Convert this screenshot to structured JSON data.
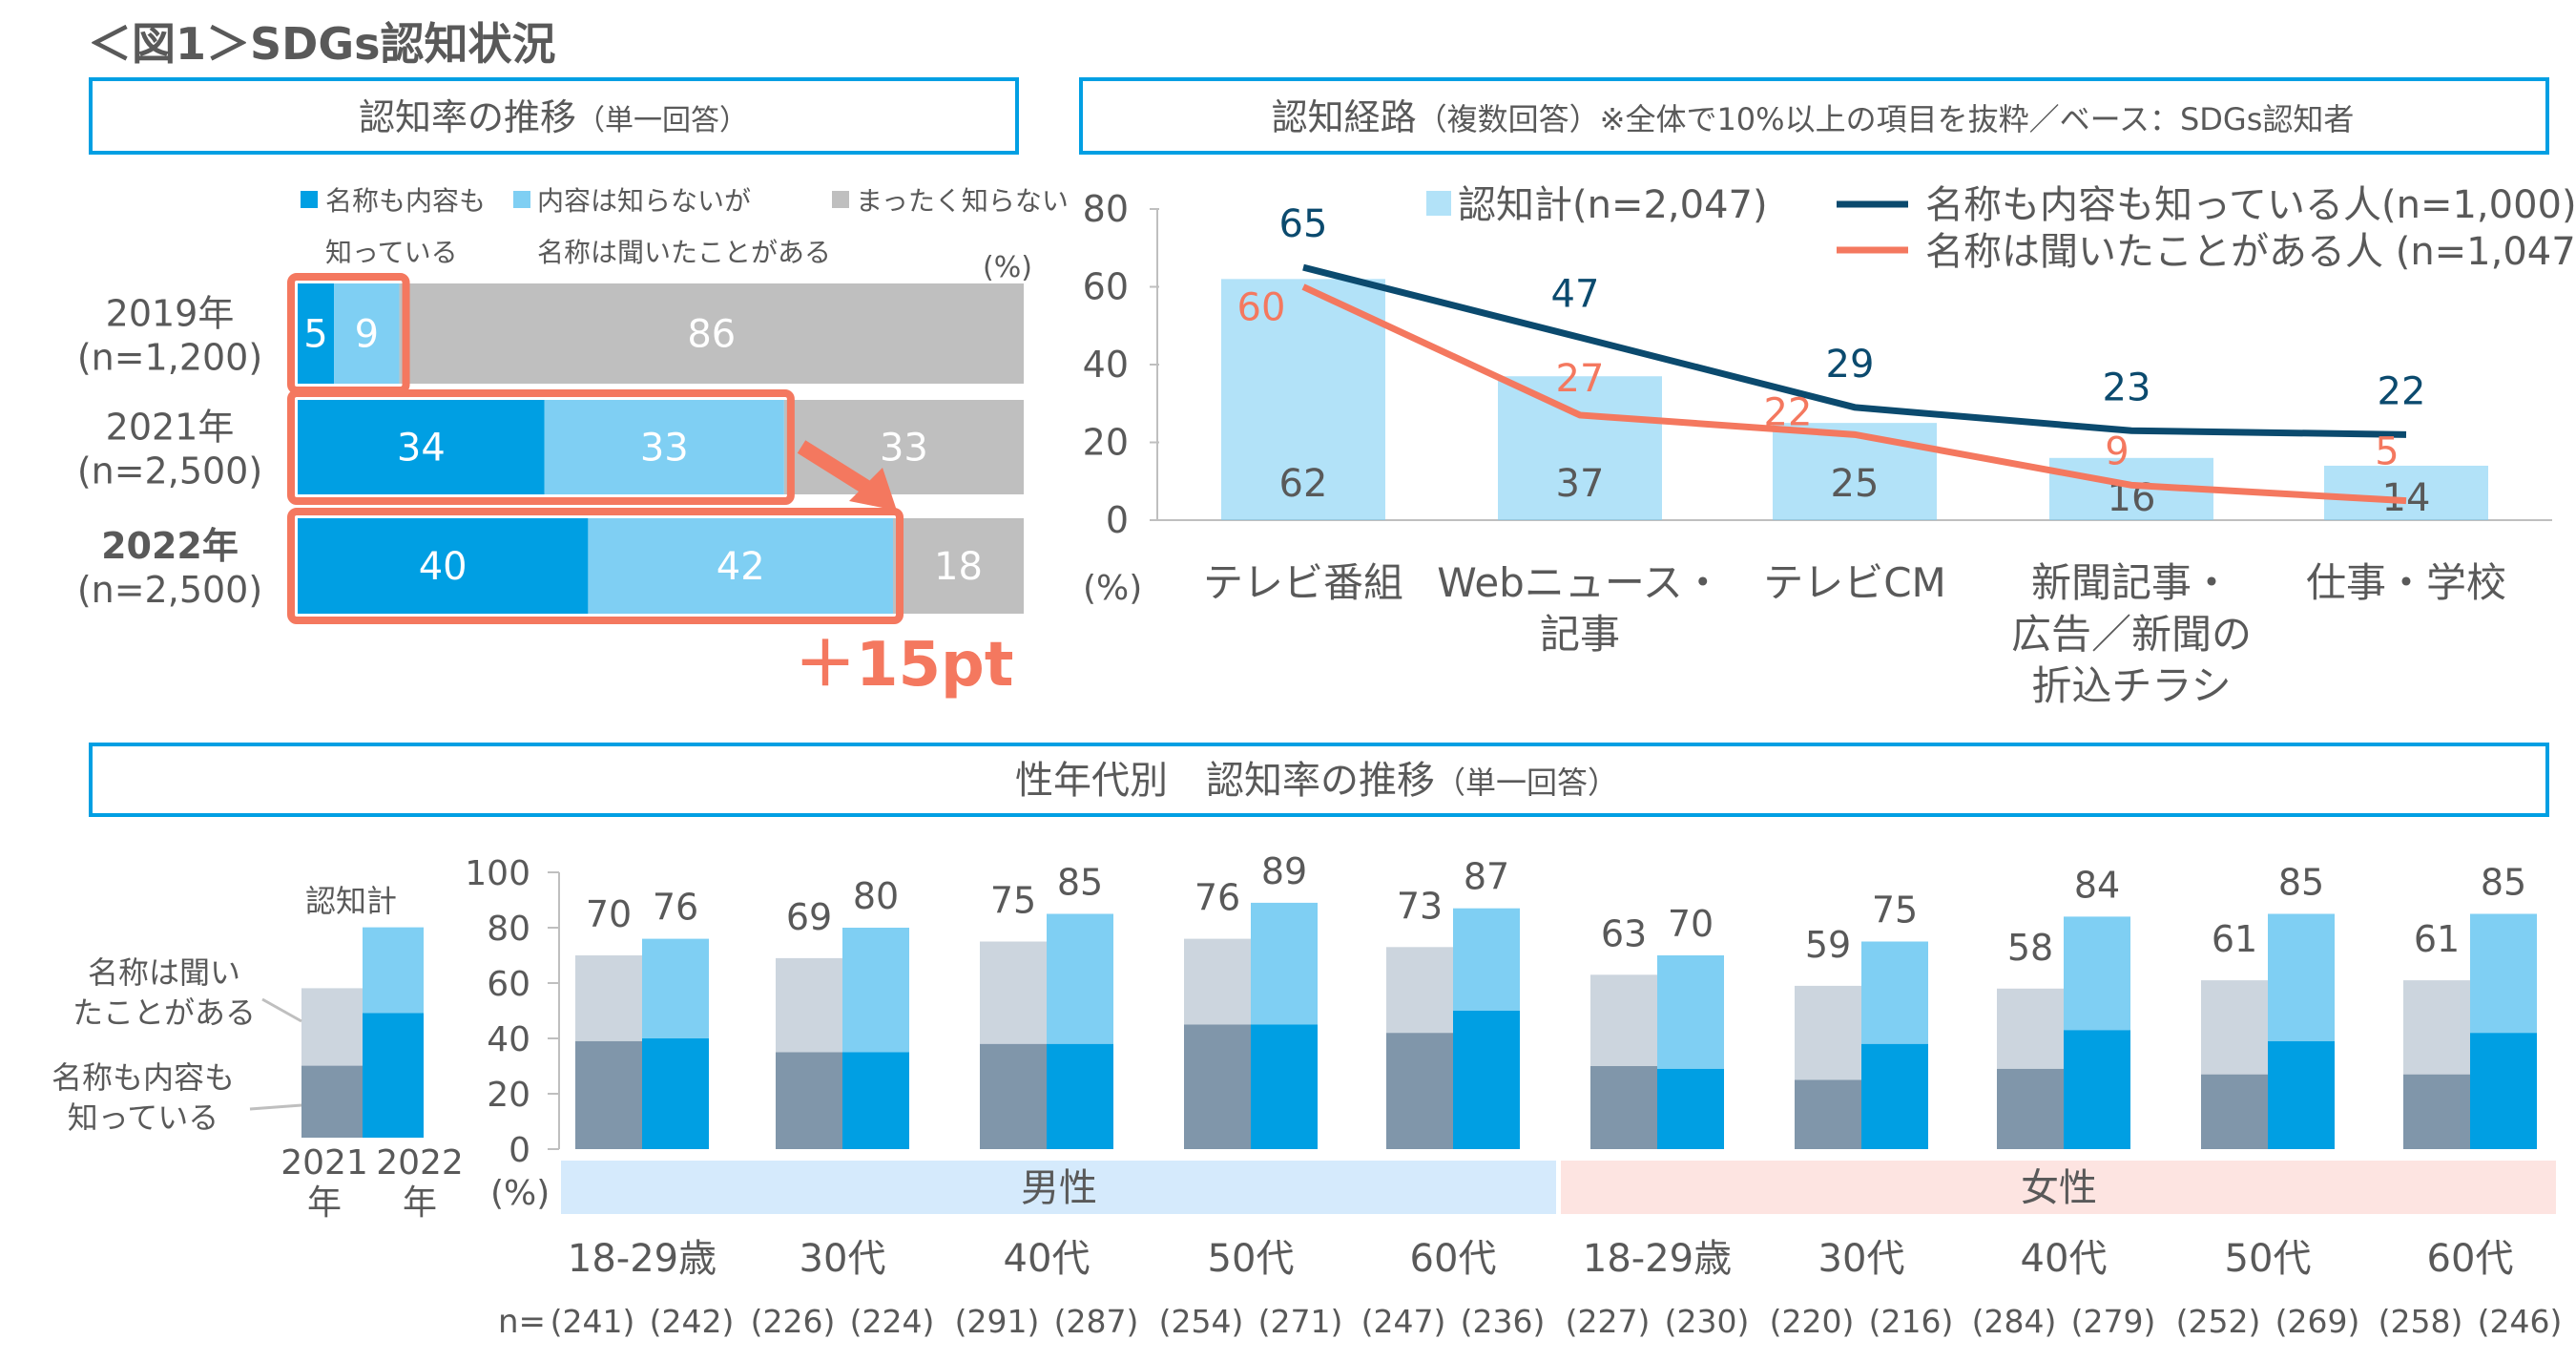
{
  "title": "＜図1＞SDGs認知状況",
  "panel1": {
    "title": "認知率の推移",
    "title_note": "（単一回答）",
    "unit": "(%)",
    "legend": [
      {
        "line1": "名称も内容も",
        "line2": "知っている"
      },
      {
        "line1": "内容は知らないが",
        "line2": "名称は聞いたことがある"
      },
      {
        "line1": "まったく知らない",
        "line2": ""
      }
    ],
    "highlight": "＋15pt"
  },
  "panel2": {
    "title": "認知経路",
    "title_note": "（複数回答）※全体で10%以上の項目を抜粋／ベース：SDGs認知者"
  },
  "panel3": {
    "title": "性年代別　認知率の推移",
    "title_note": "（単一回答）"
  },
  "colors": {
    "full_known": "#009fe3",
    "name_only": "#7fcff3",
    "unknown": "#bfbfbf",
    "old_full": "#8096aa",
    "old_name": "#ccd5de",
    "navy_line": "#0b4a6e",
    "orange_line": "#f4785f",
    "male_band": "#d5eafc",
    "female_band": "#fde4e1",
    "frame": "#009fe3"
  },
  "chart_data": [
    {
      "type": "bar",
      "orientation": "horizontal-stacked",
      "title": "認知率の推移",
      "unit": "(%)",
      "series_names": [
        "名称も内容も知っている",
        "内容は知らないが名称は聞いたことがある",
        "まったく知らない"
      ],
      "rows": [
        {
          "year": "2019年",
          "n": "(n=1,200)",
          "values": [
            5,
            9,
            86
          ],
          "bold": false
        },
        {
          "year": "2021年",
          "n": "(n=2,500)",
          "values": [
            34,
            33,
            33
          ],
          "bold": false
        },
        {
          "year": "2022年",
          "n": "(n=2,500)",
          "values": [
            40,
            42,
            18
          ],
          "bold": true
        }
      ],
      "xlim": [
        0,
        100
      ]
    },
    {
      "type": "bar+line",
      "title": "認知経路",
      "ylabel": "(%)",
      "ylim": [
        0,
        80
      ],
      "yticks": [
        "0",
        "20",
        "40",
        "60",
        "80"
      ],
      "categories": [
        [
          "テレビ番組"
        ],
        [
          "Webニュース・",
          "記事"
        ],
        [
          "テレビCM"
        ],
        [
          "新聞記事・",
          "広告／新聞の",
          "折込チラシ"
        ],
        [
          "仕事・学校"
        ]
      ],
      "series": [
        {
          "name": "認知計(n=2,047)",
          "kind": "bar",
          "values": [
            62,
            37,
            25,
            16,
            14
          ]
        },
        {
          "name": "名称も内容も知っている人(n=1,000)",
          "kind": "line",
          "values": [
            65,
            47,
            29,
            23,
            22
          ]
        },
        {
          "name": "名称は聞いたことがある人 (n=1,047)",
          "kind": "line",
          "values": [
            60,
            27,
            22,
            9,
            5
          ]
        }
      ]
    },
    {
      "type": "bar",
      "orientation": "vertical-stacked-grouped",
      "title": "性年代別 認知率の推移",
      "ylabel": "(%)",
      "ylim": [
        0,
        100
      ],
      "yticks": [
        "0",
        "20",
        "40",
        "60",
        "80",
        "100"
      ],
      "legend": {
        "title": "認知計",
        "name_only": [
          "名称は聞い",
          "たことがある"
        ],
        "full": [
          "名称も内容も",
          "知っている"
        ],
        "years": [
          [
            "2021",
            "年"
          ],
          [
            "2022",
            "年"
          ]
        ],
        "sample_totals": [
          54,
          76
        ],
        "sample_full": [
          26,
          45
        ]
      },
      "genders": [
        "男性",
        "女性"
      ],
      "n_prefix": "n=",
      "groups": [
        {
          "gender": "男性",
          "age": "18-29歳",
          "total": [
            70,
            76
          ],
          "full": [
            39,
            40
          ],
          "n": [
            "(241)",
            "(242)"
          ]
        },
        {
          "gender": "男性",
          "age": "30代",
          "total": [
            69,
            80
          ],
          "full": [
            35,
            35
          ],
          "n": [
            "(226)",
            "(224)"
          ]
        },
        {
          "gender": "男性",
          "age": "40代",
          "total": [
            75,
            85
          ],
          "full": [
            38,
            38
          ],
          "n": [
            "(291)",
            "(287)"
          ]
        },
        {
          "gender": "男性",
          "age": "50代",
          "total": [
            76,
            89
          ],
          "full": [
            45,
            45
          ],
          "n": [
            "(254)",
            "(271)"
          ]
        },
        {
          "gender": "男性",
          "age": "60代",
          "total": [
            73,
            87
          ],
          "full": [
            42,
            50
          ],
          "n": [
            "(247)",
            "(236)"
          ]
        },
        {
          "gender": "女性",
          "age": "18-29歳",
          "total": [
            63,
            70
          ],
          "full": [
            30,
            29
          ],
          "n": [
            "(227)",
            "(230)"
          ]
        },
        {
          "gender": "女性",
          "age": "30代",
          "total": [
            59,
            75
          ],
          "full": [
            25,
            38
          ],
          "n": [
            "(220)",
            "(216)"
          ]
        },
        {
          "gender": "女性",
          "age": "40代",
          "total": [
            58,
            84
          ],
          "full": [
            29,
            43
          ],
          "n": [
            "(284)",
            "(279)"
          ]
        },
        {
          "gender": "女性",
          "age": "50代",
          "total": [
            61,
            85
          ],
          "full": [
            27,
            39
          ],
          "n": [
            "(252)",
            "(269)"
          ]
        },
        {
          "gender": "女性",
          "age": "60代",
          "total": [
            61,
            85
          ],
          "full": [
            27,
            42
          ],
          "n": [
            "(258)",
            "(246)"
          ]
        }
      ]
    }
  ]
}
